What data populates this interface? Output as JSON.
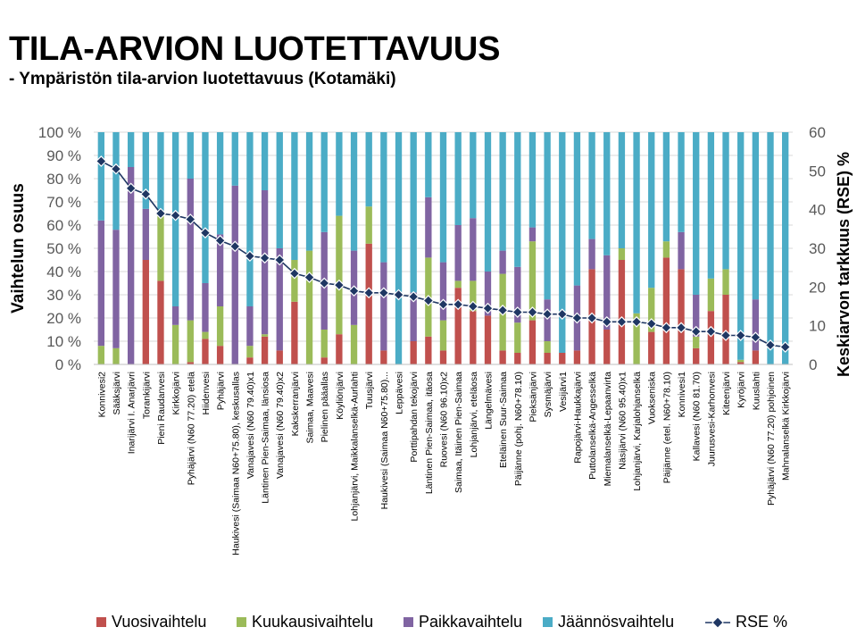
{
  "slide": {
    "title": "TILA-ARVION LUOTETTAVUUS",
    "subtitle": "- Ympäristön tila-arvion luotettavuus (Kotamäki)"
  },
  "colors": {
    "vuosi": "#c0504d",
    "kuukausi": "#9bbb59",
    "paikka": "#8064a2",
    "jaannos": "#4bacc6",
    "rse": "#1f3763",
    "grid": "#d9d9d9",
    "axis_text": "#595959"
  },
  "chart_data": {
    "type": "bar",
    "stacked": true,
    "ylabel": "Vaihtelun osuus",
    "y2label": "Keskiarvon tarkkuus (RSE) %",
    "ylim": [
      0,
      100
    ],
    "y2lim": [
      0,
      60
    ],
    "y_ticks": [
      "0 %",
      "10 %",
      "20 %",
      "30 %",
      "40 %",
      "50 %",
      "60 %",
      "70 %",
      "80 %",
      "90 %",
      "100 %"
    ],
    "y2_ticks": [
      "0",
      "10",
      "20",
      "30",
      "40",
      "50",
      "60"
    ],
    "grid": true,
    "legend_position": "bottom",
    "categories": [
      "Konnivesi2",
      "Sääksjärvi",
      "Inarijärvi I. Anarjävri",
      "Torankijärvi",
      "Pieni Raudanvesi",
      "Kirkkojärvi",
      "Pyhäjärvi (N60 77.20) etelä",
      "Hiidenvesi",
      "Pyhäjärvi",
      "Haukivesi (Saimaa N60+75.80), keskusallas",
      "Vanajavesi (N60 79.40)x1",
      "Läntinen Pien-Saimaa, länsiosa",
      "Vanajavesi (N60 79.40)x2",
      "Kakskerranjärvi",
      "Saimaa, Maavesi",
      "Pielinen pääallas",
      "Köyliönjärvi",
      "Lohjanjärvi, Maikkalanselkä-Aurlahti",
      "Tuusjärvi",
      "Haukivesi (Saimaa N60+75.80)...",
      "Leppävesi",
      "Porttipahdan tekojärvi",
      "Läntinen Pien-Saimaa, itäosa",
      "Ruovesi (N60 96.10)x2",
      "Saimaa, Itäinen Pien-Saimaa",
      "Lohjanjärvi, eteläosa",
      "Längelmävesi",
      "Eteläinen Suur-Saimaa",
      "Päijänne (pohj. N60+78.10)",
      "Pieksänjärvi",
      "Sysmäjärvi",
      "Vesijärvi1",
      "Rapojärvi-Haukkajärvi",
      "Puttolanselkä-Angesselkä",
      "Miemalanselkä-Lepaanvirta",
      "Näsijärvi (N60 95.40)x1",
      "Lohjanjärvi, Karjalohjanselkä",
      "Vuokseniska",
      "Päijänne (etel. N60+78.10)",
      "Konnivesi1",
      "Kallavesi (N60 81.70)",
      "Juurusvesi-Karhonvesi",
      "Kiteenjärvi",
      "Kyröjärvi",
      "Kuuslahti",
      "Pyhäjärvi (N60 77.20) pohjoinen",
      "Mahnalanselkä Kirkkojärvi"
    ],
    "series": [
      {
        "name": "Vuosivaihtelu",
        "values": [
          0,
          0,
          0,
          45,
          36,
          0,
          1,
          11,
          8,
          0,
          3,
          12,
          6,
          27,
          0,
          3,
          13,
          0,
          52,
          6,
          0,
          10,
          12,
          6,
          33,
          23,
          21,
          6,
          5,
          19,
          5,
          5,
          6,
          41,
          15,
          45,
          0,
          14,
          46,
          41,
          7,
          23,
          30,
          1,
          6,
          0,
          0
        ]
      },
      {
        "name": "Kuukausivaihtelu",
        "values": [
          8,
          7,
          0,
          0,
          28,
          17,
          18,
          3,
          17,
          0,
          5,
          1,
          0,
          18,
          49,
          12,
          51,
          17,
          16,
          0,
          0,
          0,
          34,
          13,
          3,
          13,
          0,
          33,
          13,
          34,
          5,
          0,
          0,
          0,
          0,
          5,
          22,
          19,
          7,
          0,
          5,
          14,
          11,
          1,
          0,
          0,
          0
        ]
      },
      {
        "name": "Paikkavaihtelu",
        "values": [
          54,
          51,
          85,
          22,
          0,
          8,
          61,
          21,
          31,
          77,
          17,
          62,
          44,
          0,
          0,
          42,
          0,
          32,
          0,
          38,
          0,
          21,
          26,
          25,
          24,
          27,
          19,
          10,
          24,
          6,
          18,
          0,
          28,
          13,
          32,
          0,
          0,
          0,
          0,
          16,
          18,
          0,
          0,
          0,
          22,
          0,
          0
        ]
      },
      {
        "name": "Jäännösvaihtelu",
        "values": [
          38,
          42,
          15,
          33,
          36,
          75,
          20,
          65,
          44,
          23,
          75,
          25,
          50,
          55,
          51,
          43,
          36,
          51,
          32,
          56,
          100,
          69,
          28,
          56,
          40,
          37,
          60,
          51,
          58,
          41,
          72,
          95,
          66,
          46,
          53,
          50,
          78,
          67,
          47,
          43,
          70,
          63,
          59,
          98,
          72,
          100,
          100
        ]
      }
    ],
    "rse": {
      "name": "RSE %",
      "axis": "right",
      "values": [
        52.5,
        50.5,
        45.5,
        44,
        39,
        38.5,
        37.5,
        34,
        32,
        30.5,
        28,
        27.5,
        27,
        23.5,
        22.5,
        21,
        20.5,
        19,
        18.5,
        18.5,
        18,
        17.5,
        16.5,
        15.5,
        15.5,
        15,
        14.5,
        14,
        13.5,
        13.5,
        13,
        13,
        12,
        12,
        11,
        11,
        11,
        10.5,
        9.5,
        9.5,
        8.5,
        8.5,
        7.5,
        7.5,
        7,
        5,
        4.5
      ]
    }
  }
}
